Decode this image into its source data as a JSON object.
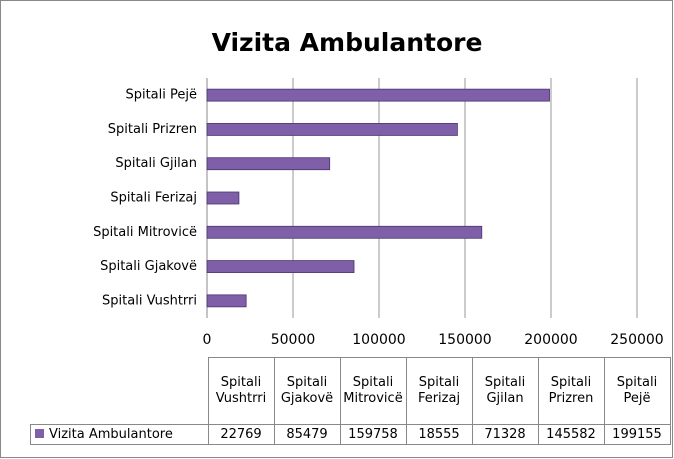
{
  "chart_data": {
    "type": "bar",
    "orientation": "horizontal",
    "title": "Vizita Ambulantore",
    "categories": [
      "Spitali Vushtrri",
      "Spitali Gjakovë",
      "Spitali Mitrovicë",
      "Spitali Ferizaj",
      "Spitali Gjilan",
      "Spitali Prizren",
      "Spitali Pejë"
    ],
    "series": [
      {
        "name": "Vizita Ambulantore",
        "color": "#7e5fa8",
        "values": [
          22769,
          85479,
          159758,
          18555,
          71328,
          145582,
          199155
        ]
      }
    ],
    "xlim": [
      0,
      250000
    ],
    "xticks": [
      0,
      50000,
      100000,
      150000,
      200000,
      250000
    ],
    "grid": true
  }
}
